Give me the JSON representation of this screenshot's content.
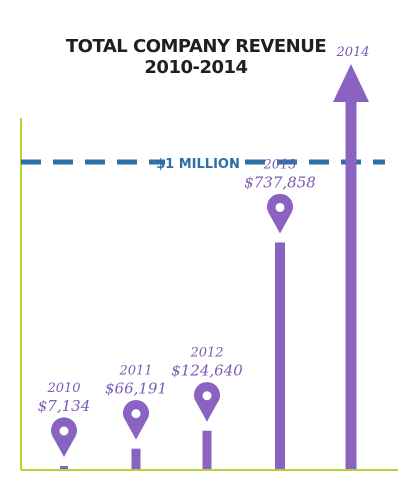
{
  "chart_data": {
    "type": "bar",
    "title": "TOTAL COMPANY REVENUE",
    "subtitle": "2010-2014",
    "categories": [
      "2010",
      "2011",
      "2012",
      "2013",
      "2014"
    ],
    "value_labels": [
      "$7,134",
      "$66,191",
      "$124,640",
      "$737,858",
      ""
    ],
    "values": [
      7134,
      66191,
      124640,
      737858,
      null
    ],
    "reference_line": {
      "value": 1000000,
      "label": "$1 MILLION",
      "style": "dashed"
    },
    "xlabel": "",
    "ylabel": "",
    "ylim": [
      0,
      1000000
    ],
    "grid": false,
    "legend": "none",
    "last_bar_style": "arrow",
    "colors": {
      "bar": "#8a63c2",
      "marker": "#8a63c2",
      "axis": "#b5d334",
      "reference": "#2f6fa8",
      "title": "#1f1f1f",
      "label": "#7b5ab0"
    }
  }
}
